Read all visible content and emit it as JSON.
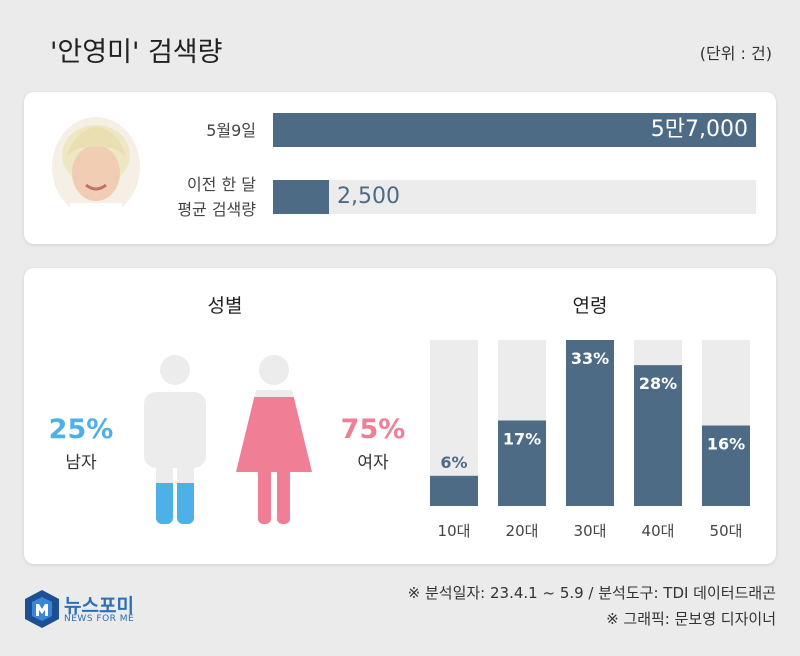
{
  "header": {
    "title": "'안영미' 검색량",
    "unit": "(단위 : 건)"
  },
  "search_volume": {
    "rows": [
      {
        "label_lines": [
          "5월9일"
        ],
        "value": 57000,
        "value_label": "5만7,000"
      },
      {
        "label_lines": [
          "이전 한 달",
          "평균 검색량"
        ],
        "value": 2500,
        "value_label": "2,500"
      }
    ]
  },
  "gender": {
    "title": "성별",
    "male": {
      "label": "남자",
      "pct_label": "25%",
      "value": 25,
      "color": "#4db1e8"
    },
    "female": {
      "label": "여자",
      "pct_label": "75%",
      "value": 75,
      "color": "#f07f95"
    }
  },
  "chart_data": [
    {
      "type": "bar",
      "title": "'안영미' 검색량",
      "categories": [
        "5월9일",
        "이전 한 달 평균 검색량"
      ],
      "values": [
        57000,
        2500
      ]
    },
    {
      "type": "bar",
      "title": "성별",
      "categories": [
        "남자",
        "여자"
      ],
      "values": [
        25,
        75
      ]
    },
    {
      "type": "bar",
      "title": "연령",
      "categories": [
        "10대",
        "20대",
        "30대",
        "40대",
        "50대"
      ],
      "values": [
        6,
        17,
        33,
        28,
        16
      ],
      "value_labels": [
        "6%",
        "17%",
        "33%",
        "28%",
        "16%"
      ],
      "ylim": [
        0,
        33
      ]
    }
  ],
  "footer": {
    "source": "※ 분석일자: 23.4.1 ~ 5.9  / 분석도구: TDI 데이터드래곤",
    "graphic": "※ 그래픽: 문보영 디자이너",
    "logo_text": "뉴스포미",
    "logo_sub": "NEWS FOR ME"
  },
  "colors": {
    "bar": "#4e6b85",
    "track": "#ececec",
    "male": "#4db1e8",
    "female": "#f07f95",
    "figure": "#ececec"
  }
}
